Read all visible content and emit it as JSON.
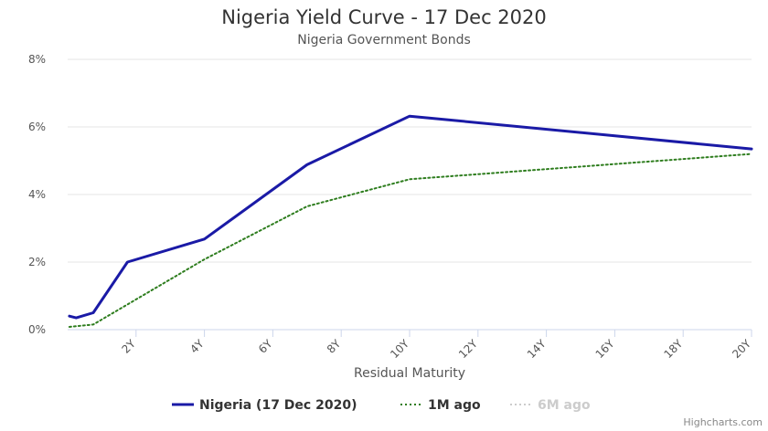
{
  "chart_data": {
    "type": "line",
    "title": "Nigeria Yield Curve - 17 Dec 2020",
    "subtitle": "Nigeria Government Bonds",
    "xlabel": "Residual Maturity",
    "ylabel": "",
    "xlim": [
      0,
      20
    ],
    "ylim": [
      0,
      8
    ],
    "x_tick_labels": [
      "2Y",
      "4Y",
      "6Y",
      "8Y",
      "10Y",
      "12Y",
      "14Y",
      "16Y",
      "18Y",
      "20Y"
    ],
    "x_tick_values": [
      2,
      4,
      6,
      8,
      10,
      12,
      14,
      16,
      18,
      20
    ],
    "y_tick_labels": [
      "0%",
      "2%",
      "4%",
      "6%",
      "8%"
    ],
    "y_tick_values": [
      0,
      2,
      4,
      6,
      8
    ],
    "grid": true,
    "legend_position": "bottom-center",
    "series": [
      {
        "name": "Nigeria (17 Dec 2020)",
        "color": "#1a1aa6",
        "style": "solid",
        "visible": true,
        "x": [
          0.05,
          0.25,
          0.75,
          1.75,
          4.0,
          7.0,
          10.0,
          20.0
        ],
        "y": [
          0.4,
          0.35,
          0.5,
          2.0,
          2.68,
          4.88,
          6.32,
          5.35
        ]
      },
      {
        "name": "1M ago",
        "color": "#2e7d1e",
        "style": "dotted",
        "visible": true,
        "x": [
          0.05,
          0.75,
          4.0,
          7.0,
          10.0,
          20.0
        ],
        "y": [
          0.08,
          0.15,
          2.08,
          3.65,
          4.45,
          5.2
        ]
      },
      {
        "name": "6M ago",
        "color": "#cccccc",
        "style": "dotted",
        "visible": false,
        "x": [],
        "y": []
      }
    ],
    "credits": "Highcharts.com"
  }
}
